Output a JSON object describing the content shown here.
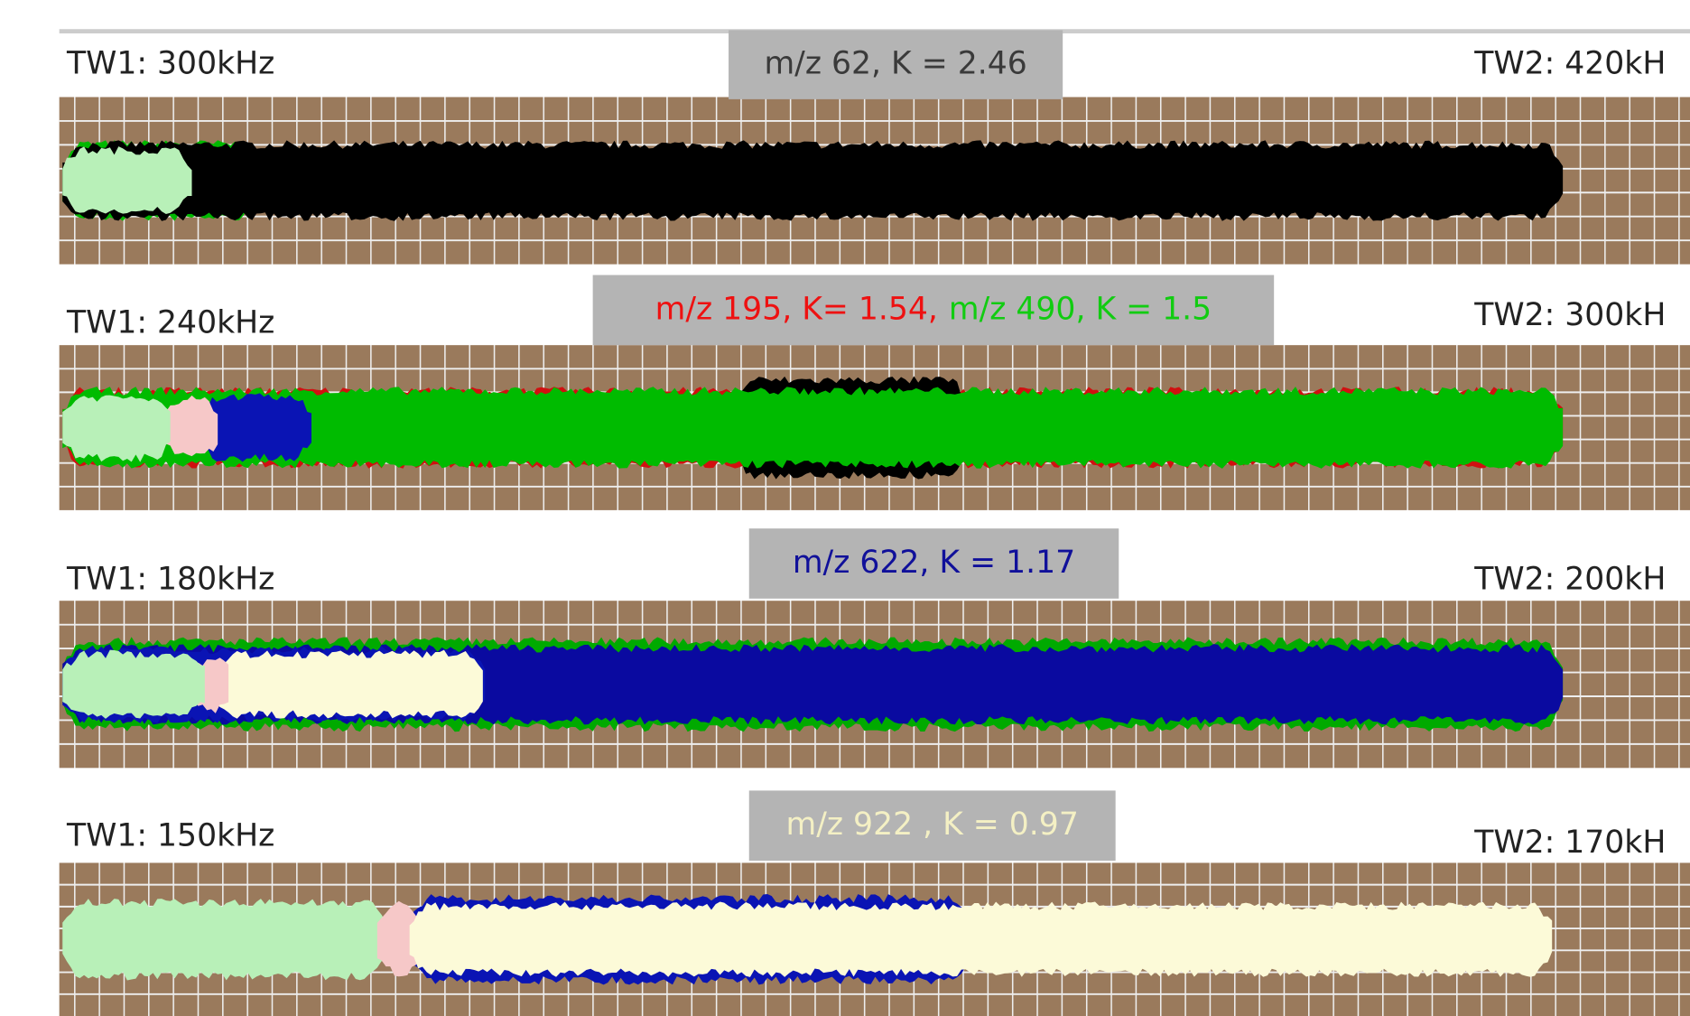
{
  "panels": [
    {
      "tw1": "TW1: 300kHz",
      "tw2": "TW2: 420kH",
      "label": [
        {
          "text": "m/z 62, K = 2.46",
          "color": "#3a3a3a"
        }
      ]
    },
    {
      "tw1": "TW1: 240kHz",
      "tw2": "TW2: 300kH",
      "label": [
        {
          "text": "m/z 195, K= 1.54,",
          "color": "#ee1111"
        },
        {
          "text": "m/z 490, K = 1.5",
          "color": "#11cc11"
        }
      ]
    },
    {
      "tw1": "TW1: 180kHz",
      "tw2": "TW2: 200kH",
      "label": [
        {
          "text": "m/z 622, K = 1.17",
          "color": "#10109a"
        }
      ]
    },
    {
      "tw1": "TW1: 150kHz",
      "tw2": "TW2: 170kH",
      "label": [
        {
          "text": "m/z 922 , K = 0.97",
          "color": "#f4f0c4"
        }
      ]
    }
  ]
}
